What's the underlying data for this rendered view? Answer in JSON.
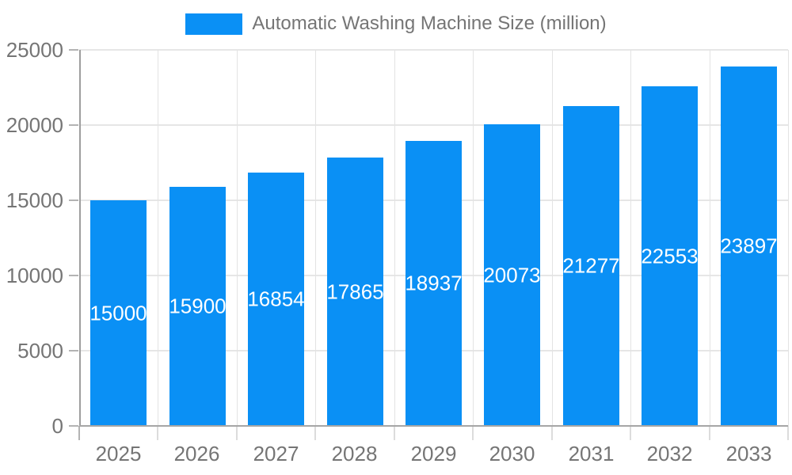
{
  "chart_data": {
    "type": "bar",
    "title": "",
    "legend": "Automatic Washing Machine Size (million)",
    "legend_position": "top",
    "categories": [
      "2025",
      "2026",
      "2027",
      "2028",
      "2029",
      "2030",
      "2031",
      "2032",
      "2033"
    ],
    "values": [
      15000,
      15900,
      16854,
      17865,
      18937,
      20073,
      21277,
      22553,
      23897
    ],
    "xlabel": "",
    "ylabel": "",
    "ylim": [
      0,
      25000
    ],
    "yticks": [
      0,
      5000,
      10000,
      15000,
      20000,
      25000
    ],
    "grid": true,
    "bar_color": "#0a90f5",
    "value_label_color": "#ffffff",
    "axis_text_color": "#757575",
    "gridline_color": "#e6e6e6",
    "axis_line_color": "#9e9e9e",
    "background_color": "#ffffff"
  }
}
